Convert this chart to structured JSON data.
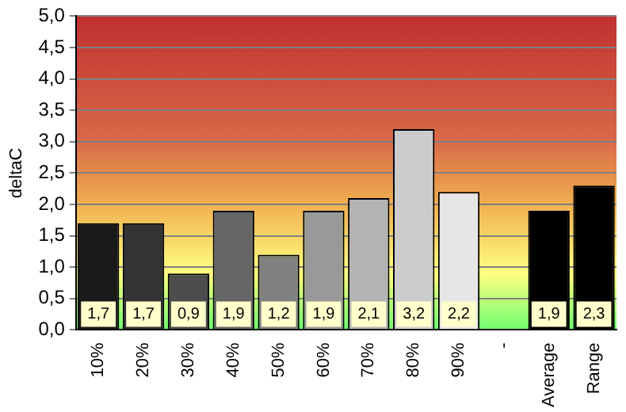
{
  "chart_data": {
    "type": "bar",
    "ylabel": "deltaC",
    "categories": [
      "10%",
      "20%",
      "30%",
      "40%",
      "50%",
      "60%",
      "70%",
      "80%",
      "90%",
      "-",
      "Average",
      "Range"
    ],
    "values": [
      1.7,
      1.7,
      0.9,
      1.9,
      1.2,
      1.9,
      2.1,
      3.2,
      2.2,
      null,
      1.9,
      2.3
    ],
    "colors": [
      "#1a1a1a",
      "#333333",
      "#4d4d4d",
      "#666666",
      "#808080",
      "#999999",
      "#b3b3b3",
      "#cccccc",
      "#e6e6e6",
      "#ffffff",
      "#000000",
      "#000000"
    ],
    "value_labels": [
      "1,7",
      "1,7",
      "0,9",
      "1,9",
      "1,2",
      "1,9",
      "2,1",
      "3,2",
      "2,2",
      null,
      "1,9",
      "2,3"
    ],
    "ylim": [
      0,
      5
    ],
    "yticks": [
      {
        "value": 0,
        "label": "0,0"
      },
      {
        "value": 0.5,
        "label": "0,5"
      },
      {
        "value": 1,
        "label": "1,0"
      },
      {
        "value": 1.5,
        "label": "1,5"
      },
      {
        "value": 2,
        "label": "2,0"
      },
      {
        "value": 2.5,
        "label": "2,5"
      },
      {
        "value": 3,
        "label": "3,0"
      },
      {
        "value": 3.5,
        "label": "3,5"
      },
      {
        "value": 4,
        "label": "4,0"
      },
      {
        "value": 4.5,
        "label": "4,5"
      },
      {
        "value": 5,
        "label": "5,0"
      }
    ],
    "grid": "y",
    "legend": false
  }
}
